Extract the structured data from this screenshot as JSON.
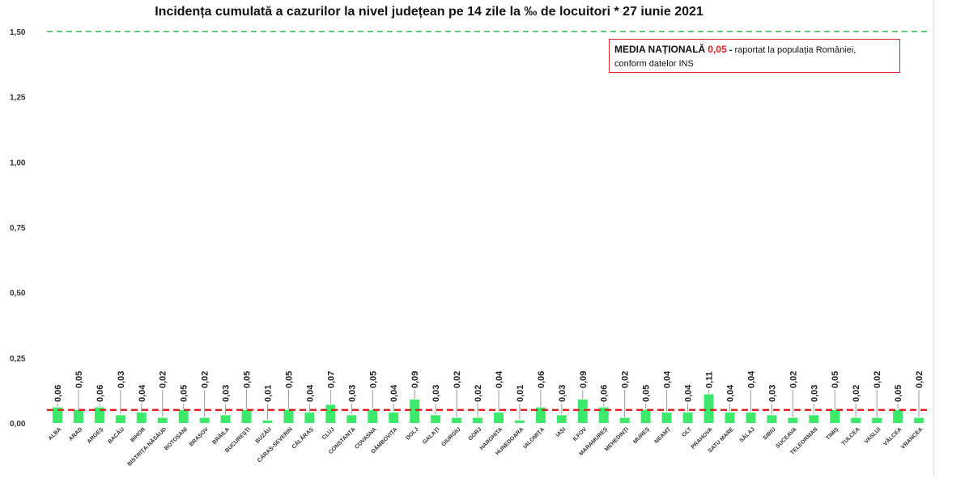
{
  "title": "Incidența cumulată a cazurilor la nivel județean pe 14 zile la ‰ de locuitori *  27 iunie 2021",
  "note": {
    "label": "MEDIA NAȚIONALĂ",
    "value": "0,05",
    "dash": "-",
    "text1": "raportat la populația României,",
    "text2": "conform datelor INS"
  },
  "colors": {
    "bar": "#3ee86b",
    "national_line": "#e02020",
    "threshold_line": "#2eb34a",
    "leader": "#999999"
  },
  "chart_data": {
    "type": "bar",
    "title": "Incidența cumulată a cazurilor la nivel județean pe 14 zile la ‰ de locuitori *  27 iunie 2021",
    "ylim": [
      0,
      1.5
    ],
    "yticks": [
      "0,00",
      "0,25",
      "0,50",
      "0,75",
      "1,00",
      "1,25",
      "1,50"
    ],
    "grid": false,
    "reference_lines": [
      {
        "value": 1.5,
        "style": "dashed",
        "color": "#2eb34a"
      },
      {
        "value": 0.05,
        "style": "dashed",
        "color": "#e02020"
      }
    ],
    "categories": [
      "ALBA",
      "ARAD",
      "ARGEȘ",
      "BACĂU",
      "BIHOR",
      "BISTRIȚA-NĂSĂUD",
      "BOTOȘANI",
      "BRAȘOV",
      "BRĂILA",
      "BUCUREȘTI",
      "BUZĂU",
      "CARAȘ-SEVERIN",
      "CĂLĂRAȘ",
      "CLUJ",
      "CONSTANȚA",
      "COVASNA",
      "DÂMBOVIȚA",
      "DOLJ",
      "GALAȚI",
      "GIURGIU",
      "GORJ",
      "HARGHITA",
      "HUNEDOARA",
      "IALOMIȚA",
      "IAȘI",
      "ILFOV",
      "MARAMUREȘ",
      "MEHEDINȚI",
      "MUREȘ",
      "NEAMȚ",
      "OLT",
      "PRAHOVA",
      "SATU MARE",
      "SĂLAJ",
      "SIBIU",
      "SUCEAVA",
      "TELEORMAN",
      "TIMIȘ",
      "TULCEA",
      "VASLUI",
      "VÂLCEA",
      "VRANCEA"
    ],
    "values": [
      0.06,
      0.05,
      0.06,
      0.03,
      0.04,
      0.02,
      0.05,
      0.02,
      0.03,
      0.05,
      0.01,
      0.05,
      0.04,
      0.07,
      0.03,
      0.05,
      0.04,
      0.09,
      0.03,
      0.02,
      0.02,
      0.04,
      0.01,
      0.06,
      0.03,
      0.09,
      0.06,
      0.02,
      0.05,
      0.04,
      0.04,
      0.11,
      0.04,
      0.04,
      0.03,
      0.02,
      0.03,
      0.05,
      0.02,
      0.02,
      0.05,
      0.02
    ],
    "labels": [
      "0,06",
      "0,05",
      "0,06",
      "0,03",
      "0,04",
      "0,02",
      "0,05",
      "0,02",
      "0,03",
      "0,05",
      "0,01",
      "0,05",
      "0,04",
      "0,07",
      "0,03",
      "0,05",
      "0,04",
      "0,09",
      "0,03",
      "0,02",
      "0,02",
      "0,04",
      "0,01",
      "0,06",
      "0,03",
      "0,09",
      "0,06",
      "0,02",
      "0,05",
      "0,04",
      "0,04",
      "0,11",
      "0,04",
      "0,04",
      "0,03",
      "0,02",
      "0,03",
      "0,05",
      "0,02",
      "0,02",
      "0,05",
      "0,02"
    ]
  }
}
